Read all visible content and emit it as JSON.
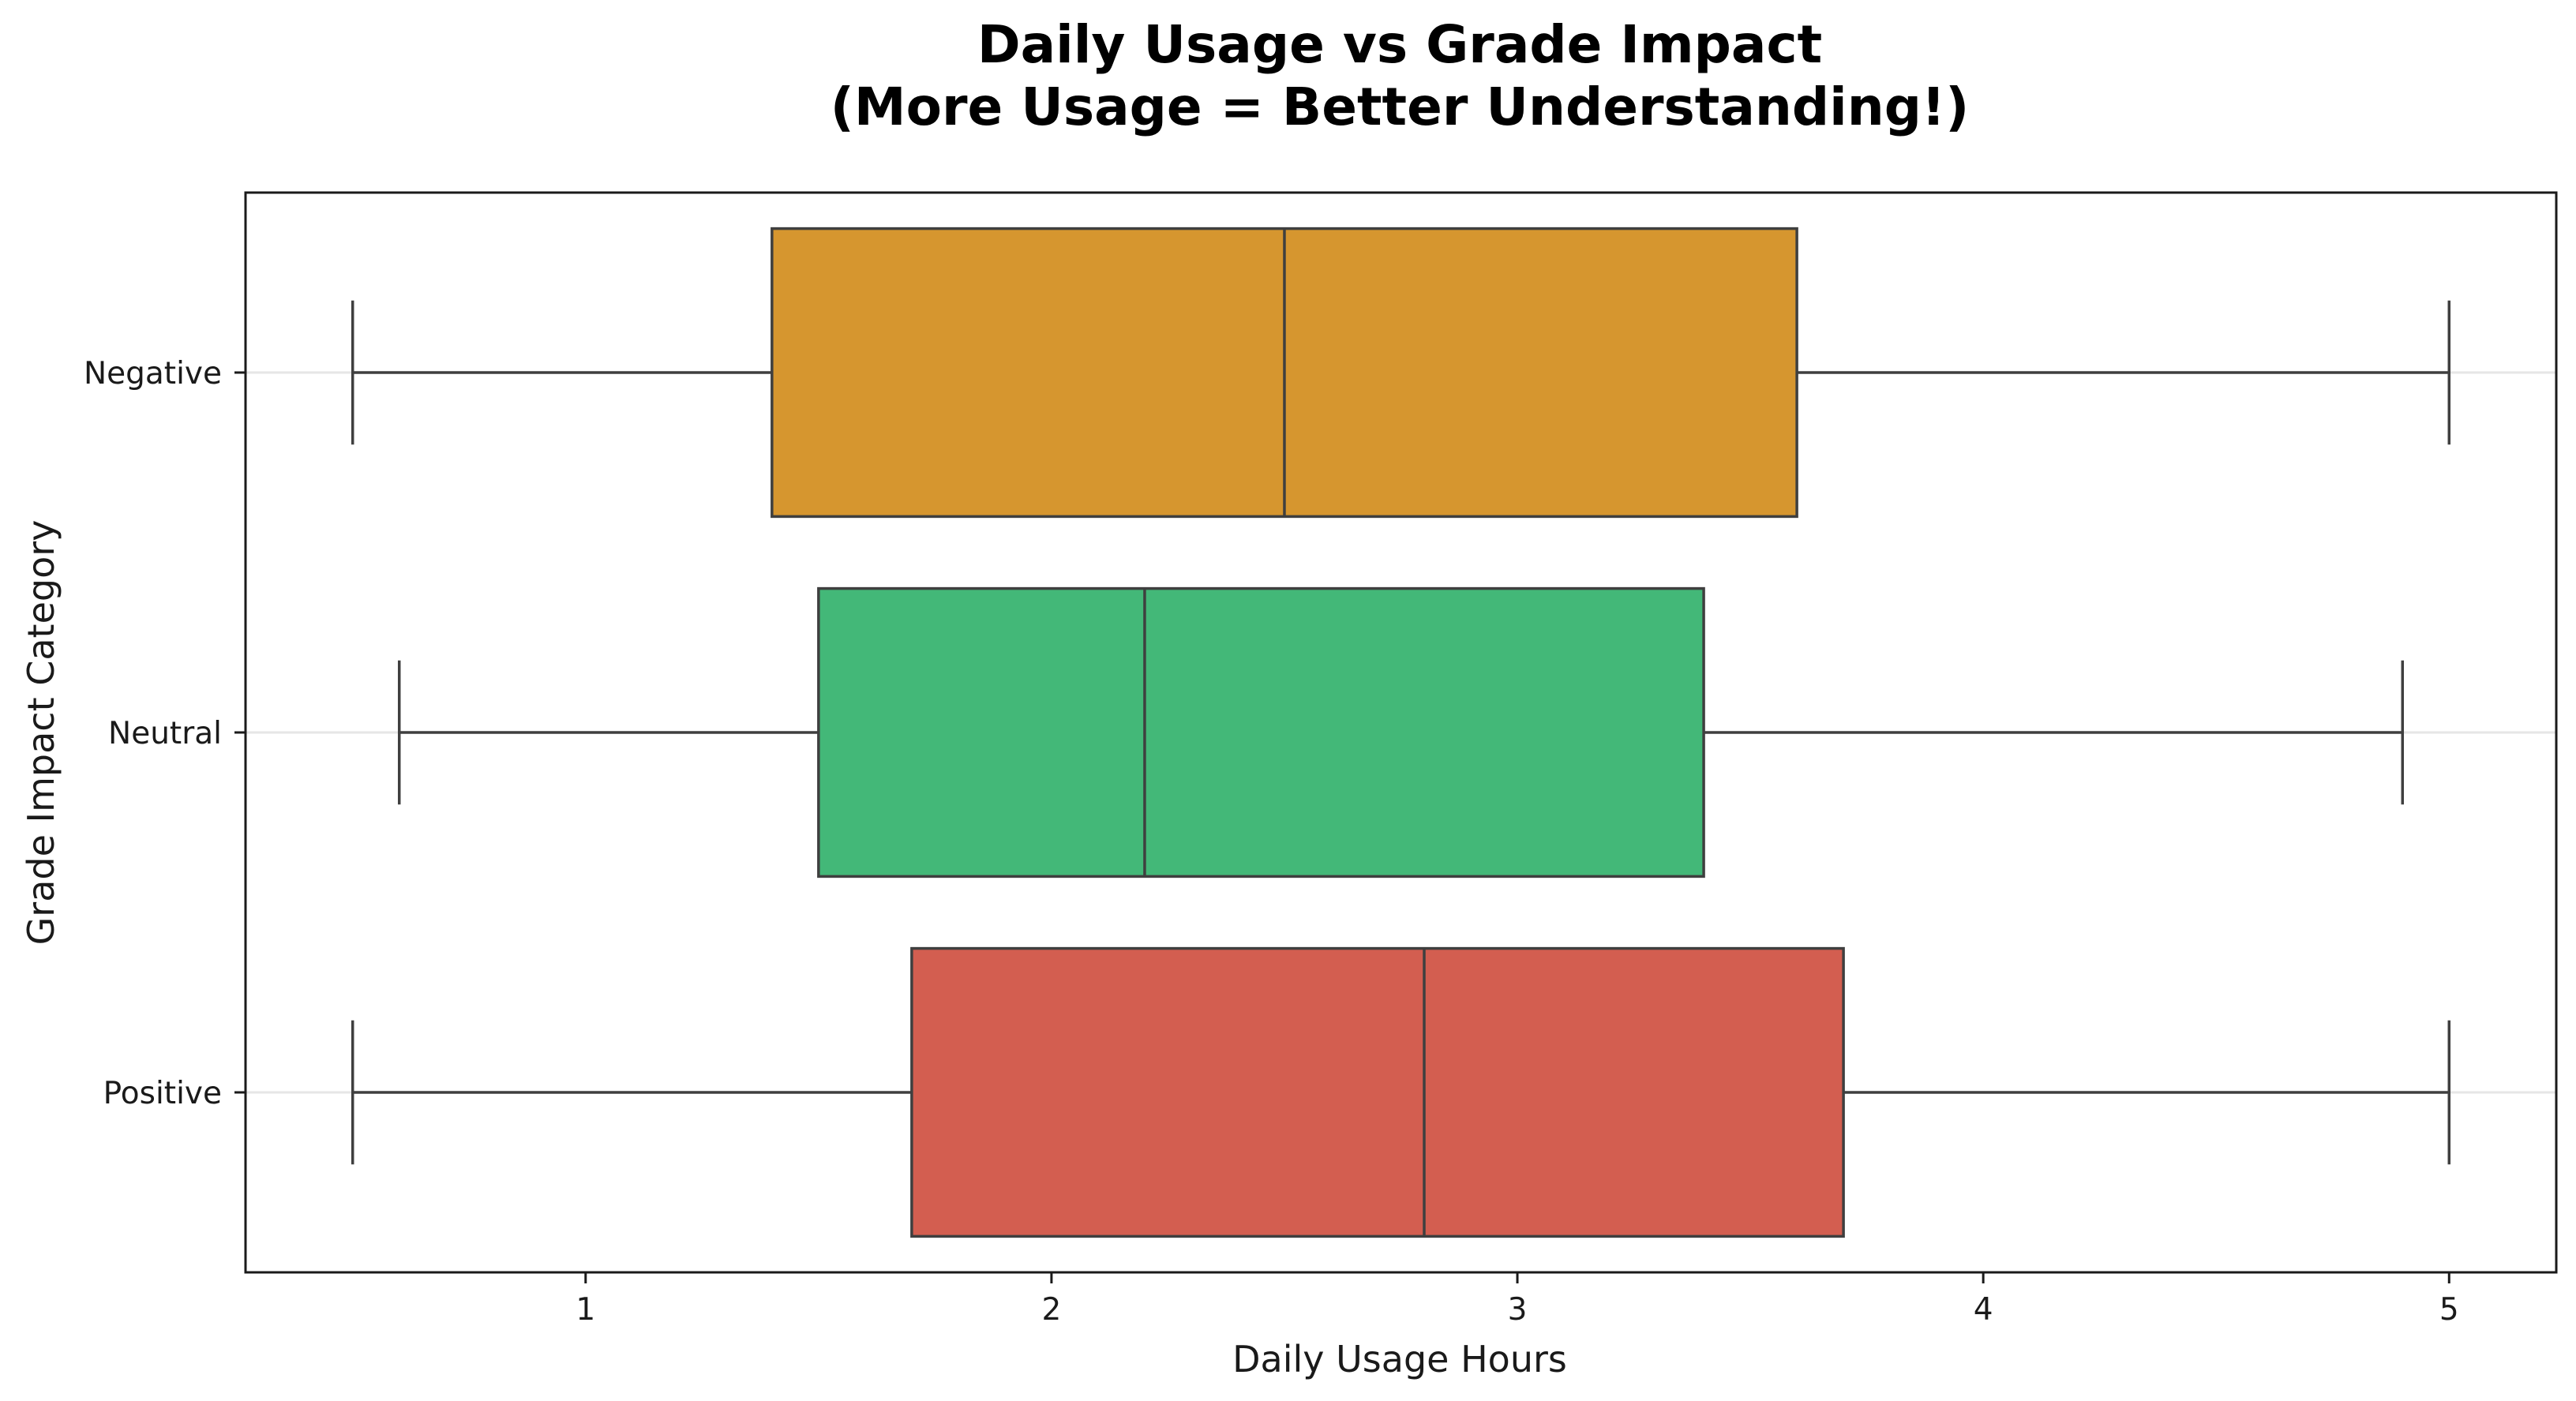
{
  "chart_data": {
    "type": "boxplot",
    "orientation": "horizontal",
    "title_lines": [
      "Daily Usage vs Grade Impact",
      "(More Usage = Better Understanding!)"
    ],
    "xlabel": "Daily Usage Hours",
    "ylabel": "Grade Impact Category",
    "xlim": [
      0.27,
      5.23
    ],
    "xticks": [
      1,
      2,
      3,
      4,
      5
    ],
    "xtick_labels": [
      "1",
      "2",
      "3",
      "4",
      "5"
    ],
    "categories": [
      "Negative",
      "Neutral",
      "Positive"
    ],
    "colors": [
      "#d6962f",
      "#43b878",
      "#d35e50"
    ],
    "edge_color": "#3f3f3f",
    "grid": "horizontal",
    "boxes": [
      {
        "category": "Negative",
        "whisker_low": 0.5,
        "q1": 1.4,
        "median": 2.5,
        "q3": 3.6,
        "whisker_high": 5.0
      },
      {
        "category": "Neutral",
        "whisker_low": 0.6,
        "q1": 1.5,
        "median": 2.2,
        "q3": 3.4,
        "whisker_high": 4.9
      },
      {
        "category": "Positive",
        "whisker_low": 0.5,
        "q1": 1.7,
        "median": 2.8,
        "q3": 3.7,
        "whisker_high": 5.0
      }
    ]
  }
}
